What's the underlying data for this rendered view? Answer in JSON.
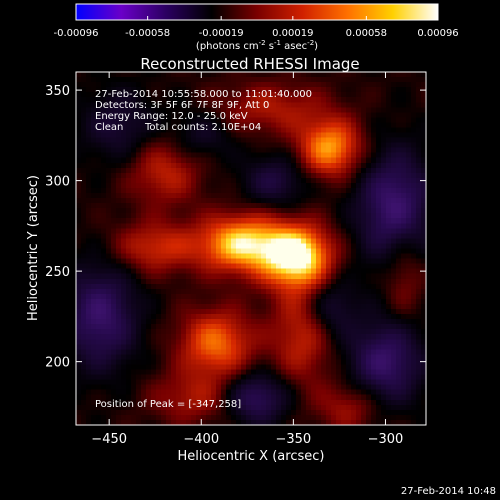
{
  "colorbar": {
    "ticks": [
      "-0.00096",
      "-0.00058",
      "-0.00019",
      "0.00019",
      "0.00058",
      "0.00096"
    ],
    "tick_values": [
      -0.00096,
      -0.00058,
      -0.00019,
      0.00019,
      0.00058,
      0.00096
    ],
    "range": [
      -0.00096,
      0.00096
    ],
    "units_main": "(photons cm",
    "units_exp1": "-2",
    "units_mid": " s",
    "units_exp2": "-1",
    "units_tail": " asec",
    "units_exp3": "-2",
    "units_close": ")",
    "stops": [
      "#0000ff",
      "#6a00c8",
      "#2a0060",
      "#000000",
      "#7a0000",
      "#d02000",
      "#ff7000",
      "#ffd000",
      "#ffffff"
    ]
  },
  "chart_data": {
    "type": "heatmap",
    "title": "Reconstructed RHESSI Image",
    "xlabel": "Heliocentric X (arcsec)",
    "ylabel": "Heliocentric Y (arcsec)",
    "xlim": [
      -468,
      -278
    ],
    "ylim": [
      165,
      360
    ],
    "xticks": [
      -450,
      -400,
      -350,
      -300
    ],
    "yticks": [
      200,
      250,
      300,
      350
    ],
    "peak": [
      -347,
      258
    ],
    "sources": [
      {
        "x": -348,
        "y": 258,
        "amp": 1.0,
        "sx": 13,
        "sy": 12
      },
      {
        "x": -378,
        "y": 265,
        "amp": 0.86,
        "sx": 16,
        "sy": 11
      },
      {
        "x": -330,
        "y": 318,
        "amp": 0.72,
        "sx": 12,
        "sy": 11
      },
      {
        "x": -392,
        "y": 210,
        "amp": 0.6,
        "sx": 14,
        "sy": 13
      },
      {
        "x": -425,
        "y": 263,
        "amp": 0.42,
        "sx": 16,
        "sy": 10
      },
      {
        "x": -420,
        "y": 305,
        "amp": 0.38,
        "sx": 14,
        "sy": 13
      },
      {
        "x": -362,
        "y": 340,
        "amp": 0.32,
        "sx": 22,
        "sy": 10
      },
      {
        "x": -345,
        "y": 215,
        "amp": 0.4,
        "sx": 12,
        "sy": 20
      },
      {
        "x": -405,
        "y": 180,
        "amp": 0.3,
        "sx": 16,
        "sy": 10
      },
      {
        "x": -320,
        "y": 175,
        "amp": 0.3,
        "sx": 12,
        "sy": 10
      },
      {
        "x": -290,
        "y": 250,
        "amp": 0.28,
        "sx": 8,
        "sy": 18
      },
      {
        "x": -455,
        "y": 225,
        "amp": -0.55,
        "sx": 14,
        "sy": 20
      },
      {
        "x": -295,
        "y": 285,
        "amp": -0.6,
        "sx": 14,
        "sy": 22
      },
      {
        "x": -300,
        "y": 200,
        "amp": -0.55,
        "sx": 14,
        "sy": 16
      },
      {
        "x": -370,
        "y": 180,
        "amp": -0.5,
        "sx": 12,
        "sy": 10
      },
      {
        "x": -360,
        "y": 300,
        "amp": -0.35,
        "sx": 12,
        "sy": 10
      },
      {
        "x": -330,
        "y": 230,
        "amp": -0.35,
        "sx": 10,
        "sy": 12
      },
      {
        "x": -445,
        "y": 330,
        "amp": -0.3,
        "sx": 14,
        "sy": 14
      },
      {
        "x": -400,
        "y": 325,
        "amp": -0.25,
        "sx": 12,
        "sy": 10
      }
    ]
  },
  "annotations": {
    "line1": "27-Feb-2014 10:55:58.000 to 11:01:40.000",
    "line2": "Detectors: 3F 5F 6F 7F 8F 9F, Att 0",
    "line3": "Energy Range: 12.0 - 25.0 keV",
    "line4_a": "Clean",
    "line4_b": "Total counts: 2.10E+04",
    "peak_label": "Position of Peak = [-347,258]"
  },
  "footer": {
    "timestamp": "27-Feb-2014 10:48"
  }
}
